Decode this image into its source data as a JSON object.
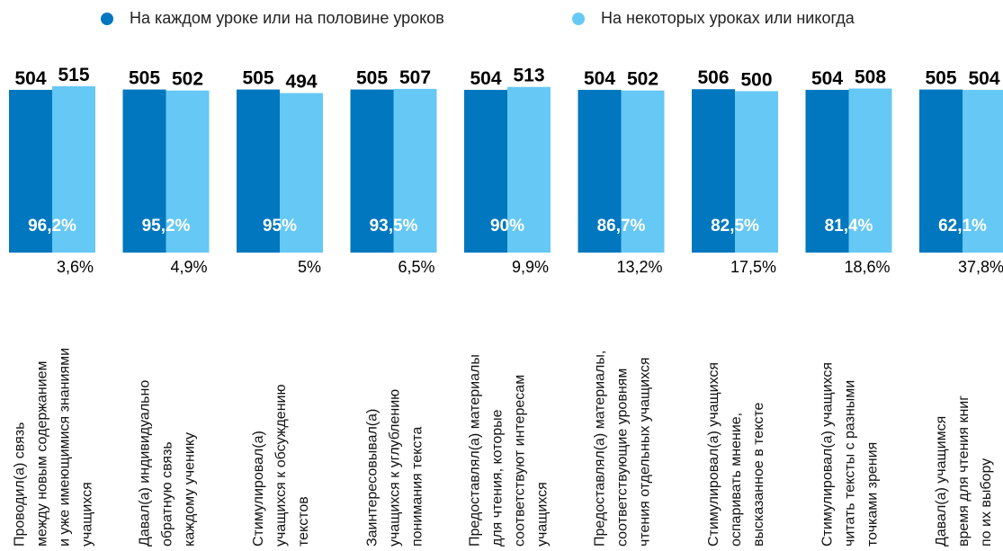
{
  "chart_data": {
    "type": "bar",
    "legend_position": "top",
    "series": [
      {
        "name": "На каждом уроке или на половине уроков",
        "color": "#0077be",
        "values": [
          504,
          505,
          505,
          505,
          504,
          504,
          506,
          504,
          505
        ],
        "percent_labels": [
          "96,2%",
          "95,2%",
          "95%",
          "93,5%",
          "90%",
          "86,7%",
          "82,5%",
          "81,4%",
          "62,1%"
        ]
      },
      {
        "name": "На некоторых уроках или никогда",
        "color": "#66c8f4",
        "values": [
          515,
          502,
          494,
          507,
          513,
          502,
          500,
          508,
          504
        ],
        "percent_labels": [
          "3,6%",
          "4,9%",
          "5%",
          "6,5%",
          "9,9%",
          "13,2%",
          "17,5%",
          "18,6%",
          "37,8%"
        ]
      }
    ],
    "categories": [
      [
        "Проводил(а) связь",
        "между новым содержанием",
        "и уже имеющимися знаниями",
        "учащихся"
      ],
      [
        "Давал(а) индивидуально",
        "обратную связь",
        "каждому ученику"
      ],
      [
        "Стимулировал(а)",
        "учащихся к обсуждению",
        "текстов"
      ],
      [
        "Заинтересовывал(а)",
        "учащихся к углублению",
        "понимания текста"
      ],
      [
        "Предоставлял(а) материалы",
        "для чтения, которые",
        "соответствуют интересам",
        "учащихся"
      ],
      [
        "Предоставлял(а) материалы,",
        "соответствующие уровням",
        "чтения отдельных учащихся"
      ],
      [
        "Стимулировал(а) учащихся",
        "оспаривать мнение,",
        "высказанное в тексте"
      ],
      [
        "Стимулировал(а) учащихся",
        "читать тексты с разными",
        "точками зрения"
      ],
      [
        "Давал(а) учащимся",
        "время для чтения книг",
        "по их выбору"
      ]
    ],
    "grid": false
  }
}
